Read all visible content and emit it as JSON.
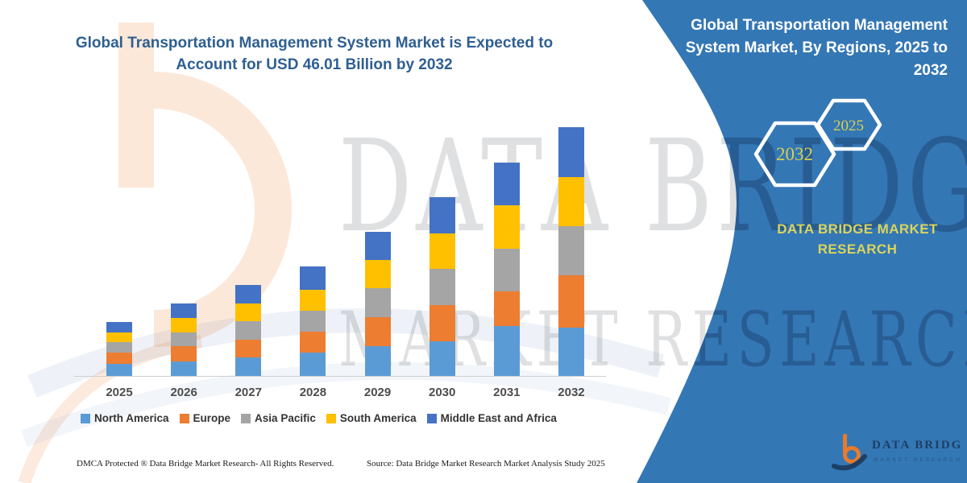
{
  "header": {
    "left_title": "Global Transportation Management System Market is Expected to Account for USD 46.01 Billion by 2032",
    "right_title": "Global Transportation Management System Market, By Regions, 2025 to 2032"
  },
  "side_panel": {
    "hexagon_large_label": "2032",
    "hexagon_small_label": "2025",
    "brand_text": "DATA BRIDGE MARKET RESEARCH",
    "panel_color": "#3477b5",
    "accent_yellow": "#d9d45c"
  },
  "corner_logo": {
    "name": "DATA BRIDGE",
    "subtitle": "MARKET RESEARCH"
  },
  "watermark": {
    "row1": "DATA BRIDGE",
    "row2": "MARKET RESEARCH"
  },
  "footer": {
    "left": "DMCA Protected ® Data Bridge Market Research-  All Rights Reserved.",
    "right": "Source: Data Bridge Market Research  Market Analysis Study 2025"
  },
  "chart_data": {
    "type": "bar",
    "stacked": true,
    "title": "Global Transportation Management System Market, By Regions, 2025 to 2032",
    "annotation": "Expected to account for USD 46.01 Billion by 2032",
    "unit": "USD Billion",
    "xlabel": "",
    "ylabel": "",
    "grid": false,
    "legend_position": "bottom",
    "categories": [
      "2025",
      "2026",
      "2027",
      "2028",
      "2029",
      "2030",
      "2031",
      "2032"
    ],
    "series": [
      {
        "name": "North America",
        "color": "#5B9BD5",
        "values": [
          2.2,
          2.7,
          3.4,
          4.3,
          5.5,
          6.4,
          9.2,
          8.9
        ]
      },
      {
        "name": "Europe",
        "color": "#ED7D31",
        "values": [
          2.1,
          2.8,
          3.3,
          3.9,
          5.4,
          6.7,
          6.4,
          9.7
        ]
      },
      {
        "name": "Asia Pacific",
        "color": "#A5A5A5",
        "values": [
          1.9,
          2.5,
          3.4,
          3.9,
          5.4,
          6.7,
          8.0,
          9.1
        ]
      },
      {
        "name": "South America",
        "color": "#FFC000",
        "values": [
          1.9,
          2.7,
          3.3,
          3.9,
          5.1,
          6.6,
          7.9,
          9.1
        ]
      },
      {
        "name": "Middle East and Africa",
        "color": "#4472C4",
        "values": [
          1.9,
          2.7,
          3.4,
          4.2,
          5.2,
          6.7,
          8.0,
          9.2
        ]
      }
    ],
    "totals_estimated": [
      10.1,
      13.4,
      16.8,
      20.1,
      26.5,
      33.1,
      39.6,
      46.0
    ]
  }
}
